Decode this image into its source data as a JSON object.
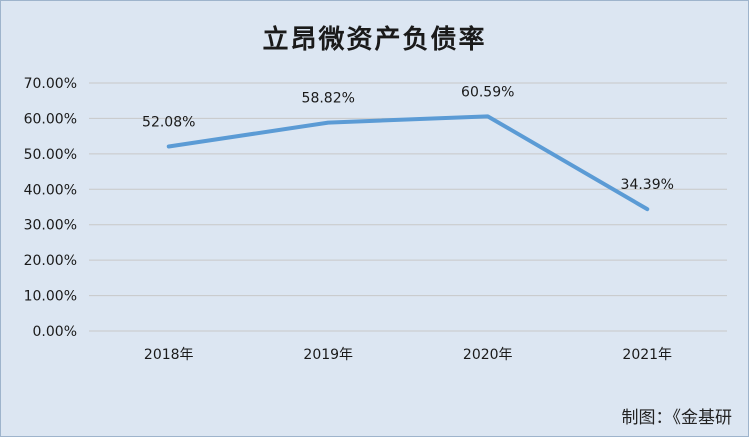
{
  "chart_title": "立昂微资产负债率",
  "credit": "制图：《金基研",
  "chart_data": {
    "type": "line",
    "title": "立昂微资产负债率",
    "categories": [
      "2018年",
      "2019年",
      "2020年",
      "2021年"
    ],
    "series": [
      {
        "values": [
          52.08,
          58.82,
          60.59,
          34.39
        ]
      }
    ],
    "data_labels": [
      "52.08%",
      "58.82%",
      "60.59%",
      "34.39%"
    ],
    "yticks": [
      "0.00%",
      "10.00%",
      "20.00%",
      "30.00%",
      "40.00%",
      "50.00%",
      "60.00%",
      "70.00%"
    ],
    "ylim": [
      0,
      70
    ],
    "grid": true,
    "legend": "none",
    "line_color": "#5b9bd5",
    "grid_color": "#c8c8c8",
    "background_color": "#dce6f2"
  }
}
